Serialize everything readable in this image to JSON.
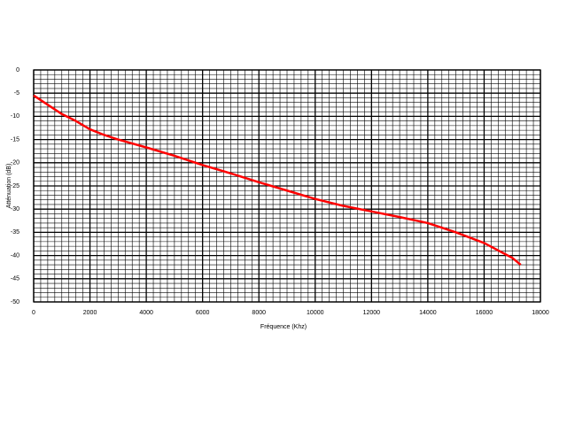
{
  "chart_data": {
    "type": "line",
    "x_label": "Fréquence (Khz)",
    "y_label": "Atténuation (dB)",
    "x": [
      0,
      500,
      1000,
      1500,
      2000,
      2500,
      3000,
      4000,
      5000,
      6000,
      7000,
      8000,
      9000,
      10000,
      11000,
      12000,
      13000,
      14000,
      15000,
      16000,
      17000,
      17300
    ],
    "series": [
      {
        "color": "#ff0000",
        "values": [
          -5.5,
          -7.5,
          -9.5,
          -11,
          -12.8,
          -14,
          -15,
          -16.7,
          -18.5,
          -20.5,
          -22.3,
          -24.2,
          -26,
          -27.8,
          -29.3,
          -30.5,
          -31.7,
          -33,
          -35,
          -37.3,
          -40.5,
          -42
        ]
      }
    ],
    "xlim": [
      0,
      18000
    ],
    "xticks": [
      0,
      2000,
      4000,
      6000,
      8000,
      10000,
      12000,
      14000,
      16000,
      18000
    ],
    "ylim": [
      -50,
      0
    ],
    "yticks": [
      0,
      -5,
      -10,
      -15,
      -20,
      -25,
      -30,
      -35,
      -40,
      -45,
      -50
    ],
    "grid": true,
    "x_minor_divisions": 8,
    "y_minor_divisions": 5
  }
}
